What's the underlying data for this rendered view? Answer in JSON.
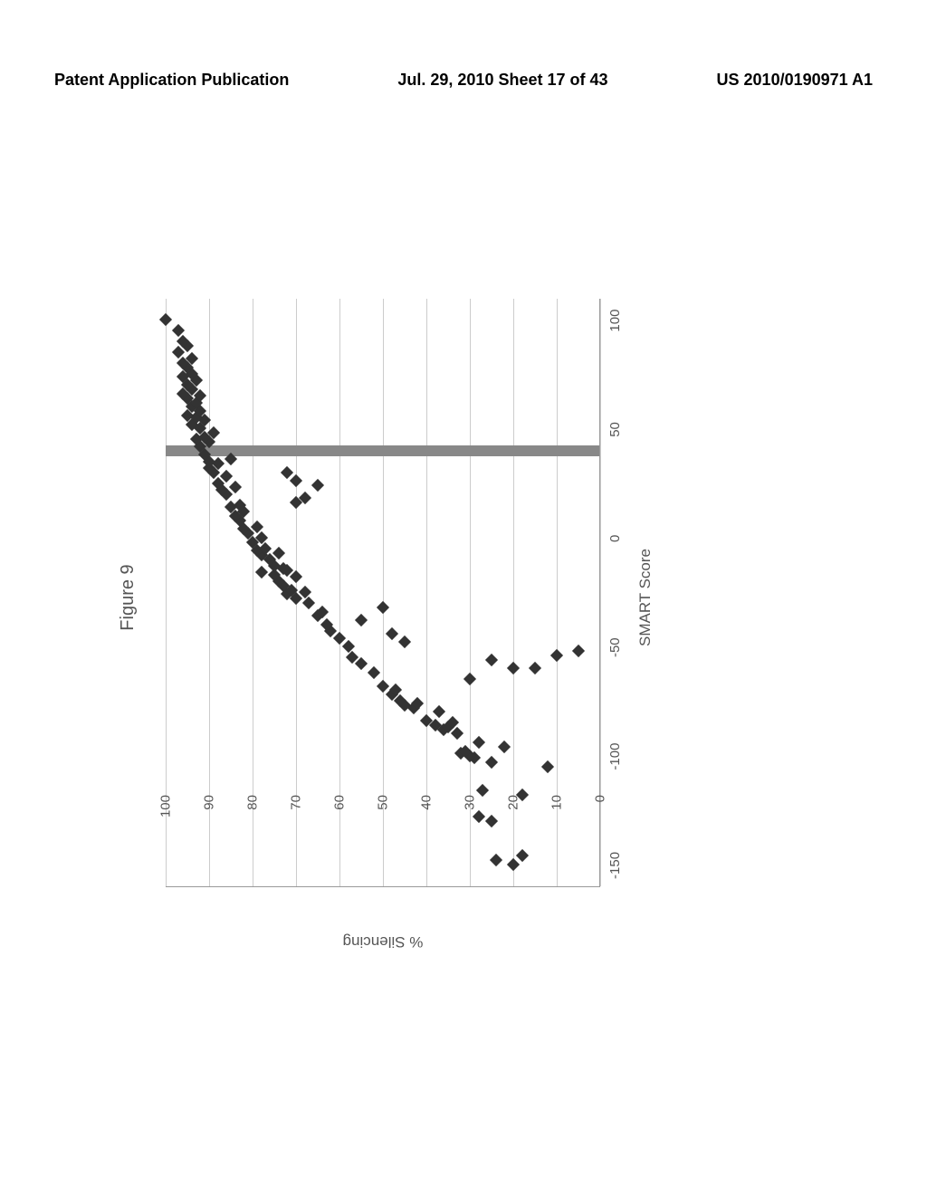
{
  "header": {
    "left": "Patent Application Publication",
    "center": "Jul. 29, 2010  Sheet 17 of 43",
    "right": "US 2010/0190971 A1"
  },
  "figure": {
    "title": "Figure 9",
    "type": "scatter",
    "xlabel": "SMART Score",
    "ylabel": "% Silencing",
    "xlim": [
      -160,
      110
    ],
    "ylim": [
      0,
      100
    ],
    "yticks": [
      0,
      10,
      20,
      30,
      40,
      50,
      60,
      70,
      80,
      90,
      100
    ],
    "xticks": [
      -150,
      -100,
      -50,
      0,
      50,
      100
    ],
    "grid_color": "#cccccc",
    "axis_color": "#999999",
    "background_color": "#ffffff",
    "marker_color": "#333333",
    "marker_size": 10,
    "threshold_bar": {
      "x": 40,
      "width": 12,
      "color": "#888888"
    },
    "points": [
      [
        -150,
        20
      ],
      [
        -148,
        24
      ],
      [
        -146,
        18
      ],
      [
        -130,
        25
      ],
      [
        -128,
        28
      ],
      [
        -118,
        18
      ],
      [
        -116,
        27
      ],
      [
        -105,
        12
      ],
      [
        -103,
        25
      ],
      [
        -101,
        29
      ],
      [
        -100,
        30
      ],
      [
        -99,
        32
      ],
      [
        -98,
        31
      ],
      [
        -96,
        22
      ],
      [
        -94,
        28
      ],
      [
        -90,
        33
      ],
      [
        -88,
        36
      ],
      [
        -87,
        35
      ],
      [
        -86,
        38
      ],
      [
        -85,
        34
      ],
      [
        -84,
        40
      ],
      [
        -80,
        37
      ],
      [
        -78,
        43
      ],
      [
        -77,
        45
      ],
      [
        -76,
        42
      ],
      [
        -75,
        46
      ],
      [
        -72,
        48
      ],
      [
        -70,
        47
      ],
      [
        -68,
        50
      ],
      [
        -65,
        30
      ],
      [
        -62,
        52
      ],
      [
        -60,
        20
      ],
      [
        -60,
        15
      ],
      [
        -58,
        55
      ],
      [
        -56,
        25
      ],
      [
        -55,
        57
      ],
      [
        -54,
        10
      ],
      [
        -52,
        5
      ],
      [
        -50,
        58
      ],
      [
        -48,
        45
      ],
      [
        -46,
        60
      ],
      [
        -44,
        48
      ],
      [
        -43,
        62
      ],
      [
        -40,
        63
      ],
      [
        -38,
        55
      ],
      [
        -36,
        65
      ],
      [
        -34,
        64
      ],
      [
        -32,
        50
      ],
      [
        -30,
        67
      ],
      [
        -28,
        70
      ],
      [
        -26,
        72
      ],
      [
        -25,
        68
      ],
      [
        -24,
        71
      ],
      [
        -22,
        73
      ],
      [
        -20,
        74
      ],
      [
        -18,
        70
      ],
      [
        -17,
        75
      ],
      [
        -16,
        78
      ],
      [
        -15,
        72
      ],
      [
        -14,
        73
      ],
      [
        -13,
        75
      ],
      [
        -10,
        76
      ],
      [
        -8,
        78
      ],
      [
        -7,
        74
      ],
      [
        -6,
        79
      ],
      [
        -5,
        77
      ],
      [
        -2,
        80
      ],
      [
        0,
        78
      ],
      [
        2,
        81
      ],
      [
        4,
        82
      ],
      [
        5,
        79
      ],
      [
        8,
        83
      ],
      [
        10,
        84
      ],
      [
        12,
        82
      ],
      [
        14,
        85
      ],
      [
        15,
        83
      ],
      [
        16,
        70
      ],
      [
        18,
        68
      ],
      [
        20,
        86
      ],
      [
        22,
        87
      ],
      [
        23,
        84
      ],
      [
        24,
        65
      ],
      [
        25,
        88
      ],
      [
        26,
        70
      ],
      [
        28,
        86
      ],
      [
        30,
        89
      ],
      [
        30,
        72
      ],
      [
        32,
        90
      ],
      [
        34,
        88
      ],
      [
        35,
        90
      ],
      [
        36,
        85
      ],
      [
        38,
        91
      ],
      [
        42,
        92
      ],
      [
        44,
        90
      ],
      [
        45,
        93
      ],
      [
        46,
        91
      ],
      [
        48,
        89
      ],
      [
        50,
        92
      ],
      [
        52,
        94
      ],
      [
        54,
        91
      ],
      [
        55,
        93
      ],
      [
        56,
        95
      ],
      [
        58,
        92
      ],
      [
        60,
        94
      ],
      [
        62,
        93
      ],
      [
        64,
        95
      ],
      [
        65,
        92
      ],
      [
        66,
        96
      ],
      [
        68,
        94
      ],
      [
        70,
        95
      ],
      [
        72,
        93
      ],
      [
        74,
        96
      ],
      [
        75,
        94
      ],
      [
        78,
        95
      ],
      [
        80,
        96
      ],
      [
        82,
        94
      ],
      [
        85,
        97
      ],
      [
        88,
        95
      ],
      [
        90,
        96
      ],
      [
        95,
        97
      ],
      [
        100,
        100
      ]
    ]
  }
}
